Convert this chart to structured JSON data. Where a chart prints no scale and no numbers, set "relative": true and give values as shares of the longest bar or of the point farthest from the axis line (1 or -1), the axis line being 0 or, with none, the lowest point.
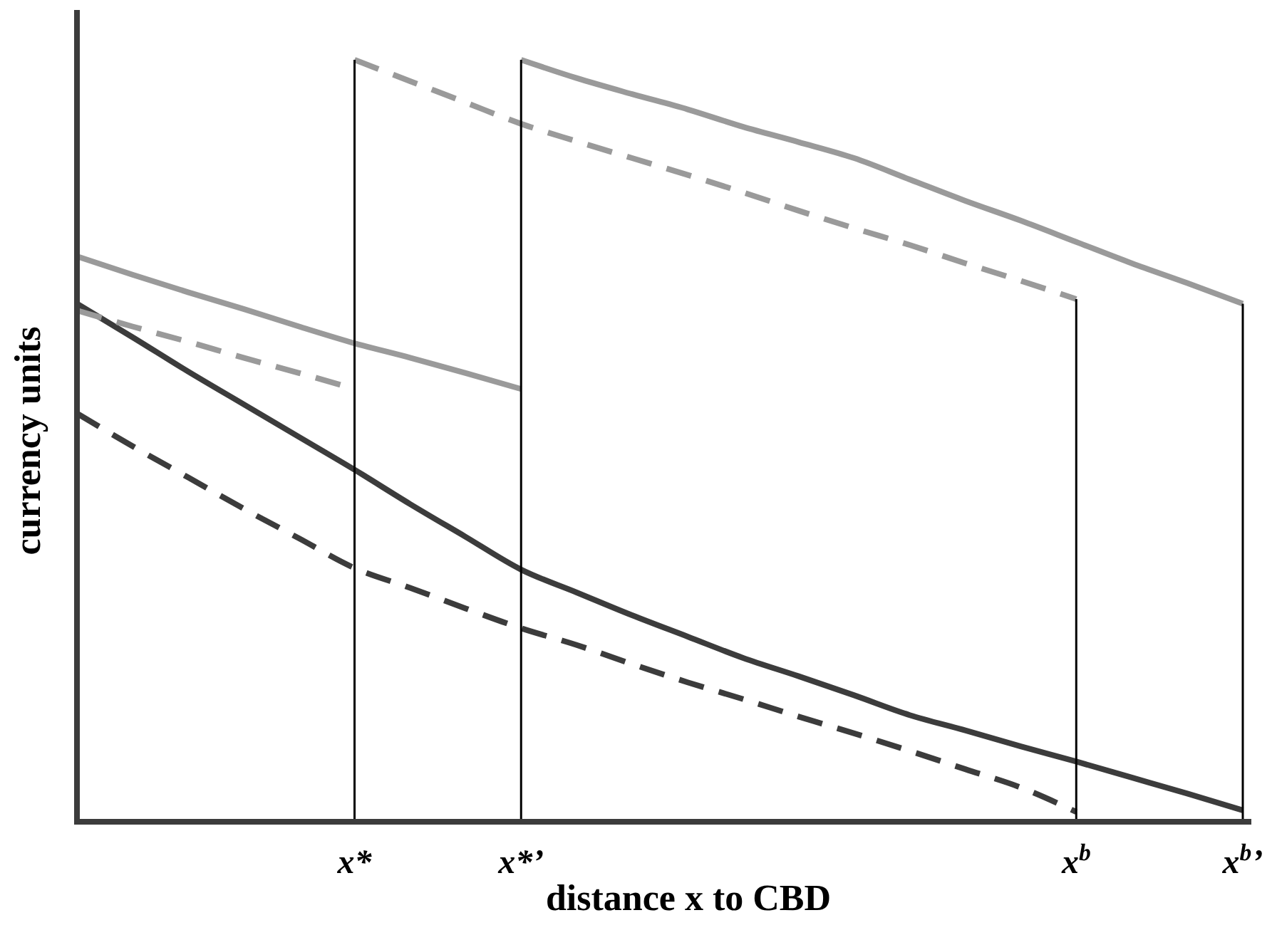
{
  "chart_data": {
    "type": "line",
    "relative": true,
    "xlabel": "distance x to CBD",
    "ylabel": "currency units",
    "categories": [
      null,
      null,
      null,
      null,
      null,
      "x*",
      null,
      null,
      "x*’",
      null,
      null,
      null,
      null,
      null,
      null,
      null,
      null,
      null,
      "x$^{b}$",
      null,
      null,
      "x$^{b}$’"
    ],
    "grid": false,
    "marker": "none",
    "series": [
      {
        "color": "#3c3c3c",
        "line_style": "solid",
        "values": [
          0.68,
          0.636,
          0.591,
          0.548,
          0.505,
          0.462,
          0.417,
          0.374,
          0.331,
          0.301,
          0.271,
          0.243,
          0.215,
          0.191,
          0.166,
          0.14,
          0.12,
          0.099,
          0.079,
          0.058,
          0.037,
          0.015
        ]
      },
      {
        "color": "#3c3c3c",
        "line_style": "dashed",
        "values": [
          0.536,
          0.493,
          0.452,
          0.411,
          0.372,
          0.333,
          0.307,
          0.28,
          0.254,
          0.232,
          0.207,
          0.183,
          0.161,
          0.138,
          0.116,
          0.093,
          0.069,
          0.045,
          0.013,
          null,
          null,
          null
        ]
      },
      {
        "color": "#9a9a9a",
        "line_style": "solid",
        "values": [
          0.742,
          0.718,
          0.695,
          0.673,
          0.65,
          0.628,
          0.609,
          0.589,
          0.568,
          null,
          null,
          null,
          null,
          null,
          null,
          null,
          null,
          null,
          null,
          null,
          null,
          null
        ]
      },
      {
        "color": "#9a9a9a",
        "line_style": "dashed",
        "values": [
          0.671,
          0.65,
          0.63,
          0.609,
          0.589,
          0.568,
          null,
          null,
          null,
          null,
          null,
          null,
          null,
          null,
          null,
          null,
          null,
          null,
          null,
          null,
          null,
          null
        ]
      },
      {
        "color": "#9a9a9a",
        "line_style": "dashed",
        "values": [
          null,
          null,
          null,
          null,
          null,
          1,
          0.972,
          0.944,
          0.916,
          0.893,
          0.871,
          0.849,
          0.826,
          0.802,
          0.779,
          0.757,
          0.733,
          0.71,
          0.686,
          null,
          null,
          null
        ]
      },
      {
        "color": "#9a9a9a",
        "line_style": "solid",
        "values": [
          null,
          null,
          null,
          null,
          null,
          null,
          null,
          null,
          1,
          0.976,
          0.955,
          0.935,
          0.912,
          0.892,
          0.871,
          0.843,
          0.815,
          0.789,
          0.761,
          0.733,
          0.707,
          0.68
        ]
      }
    ],
    "ref_lines": [
      {
        "axis": "x",
        "value": "x*",
        "color": "#000000"
      },
      {
        "axis": "x",
        "value": "x*’",
        "color": "#000000"
      },
      {
        "axis": "x",
        "value": "x$^{b}$",
        "color": "#000000"
      },
      {
        "axis": "x",
        "value": "x$^{b}$’",
        "color": "#000000"
      }
    ]
  }
}
